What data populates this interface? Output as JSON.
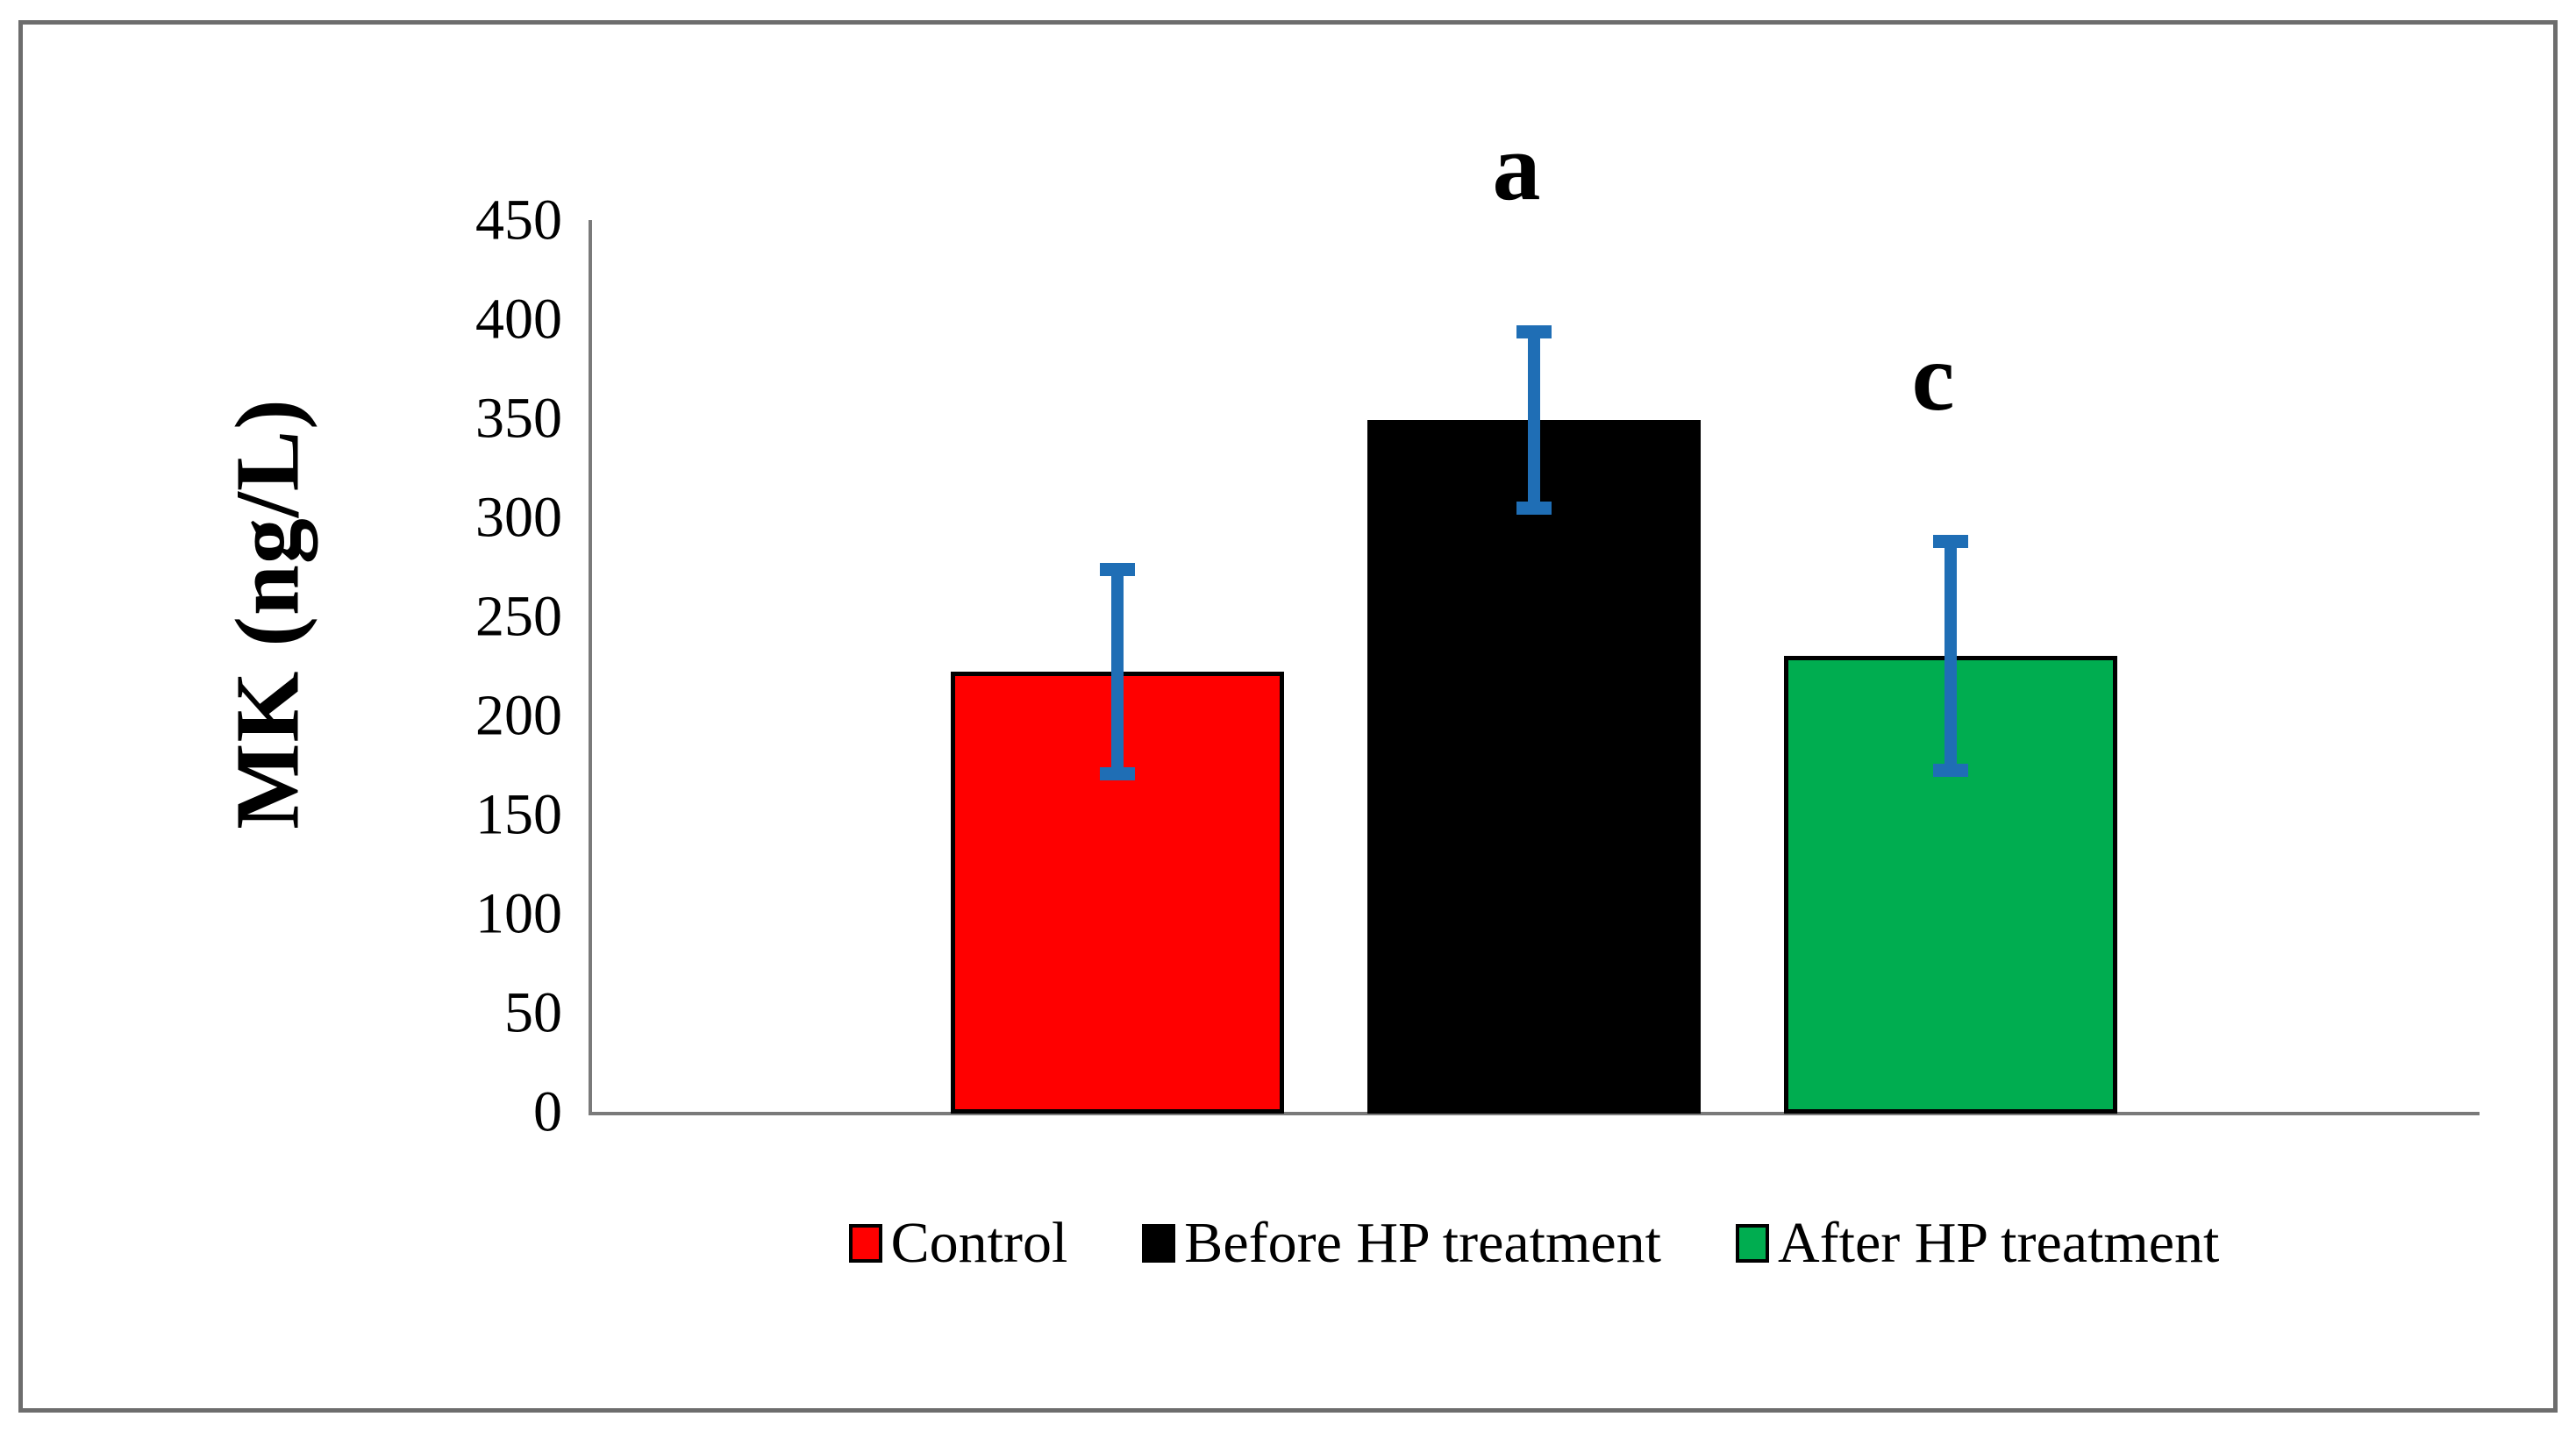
{
  "figure": {
    "background_color": "#ffffff",
    "border_color": "#6d6d6d"
  },
  "chart_data": {
    "type": "bar",
    "title": "",
    "categories": [
      "Control",
      "Before HP treatment",
      "After HP treatment"
    ],
    "values": [
      223,
      350,
      231
    ],
    "error_bars": [
      55,
      48,
      61
    ],
    "bar_colors": [
      "#ff0000",
      "#000000",
      "#00ad50"
    ],
    "bar_border_color": "#000000",
    "error_bar_color": "#1f6eb5",
    "significance_labels": [
      "",
      "a",
      "c"
    ],
    "xlabel": "",
    "ylabel": "MK (ng/L)",
    "ylim": [
      0,
      450
    ],
    "ytick_step": 50,
    "ytick_labels": [
      "0",
      "50",
      "100",
      "150",
      "200",
      "250",
      "300",
      "350",
      "400",
      "450"
    ],
    "grid": false,
    "axis_color": "#7a7a7a",
    "legend_position": "bottom"
  },
  "legend": {
    "items": [
      {
        "label": "Control",
        "color": "#ff0000"
      },
      {
        "label": "Before HP treatment",
        "color": "#000000"
      },
      {
        "label": "After HP treatment",
        "color": "#00ad50"
      }
    ]
  }
}
